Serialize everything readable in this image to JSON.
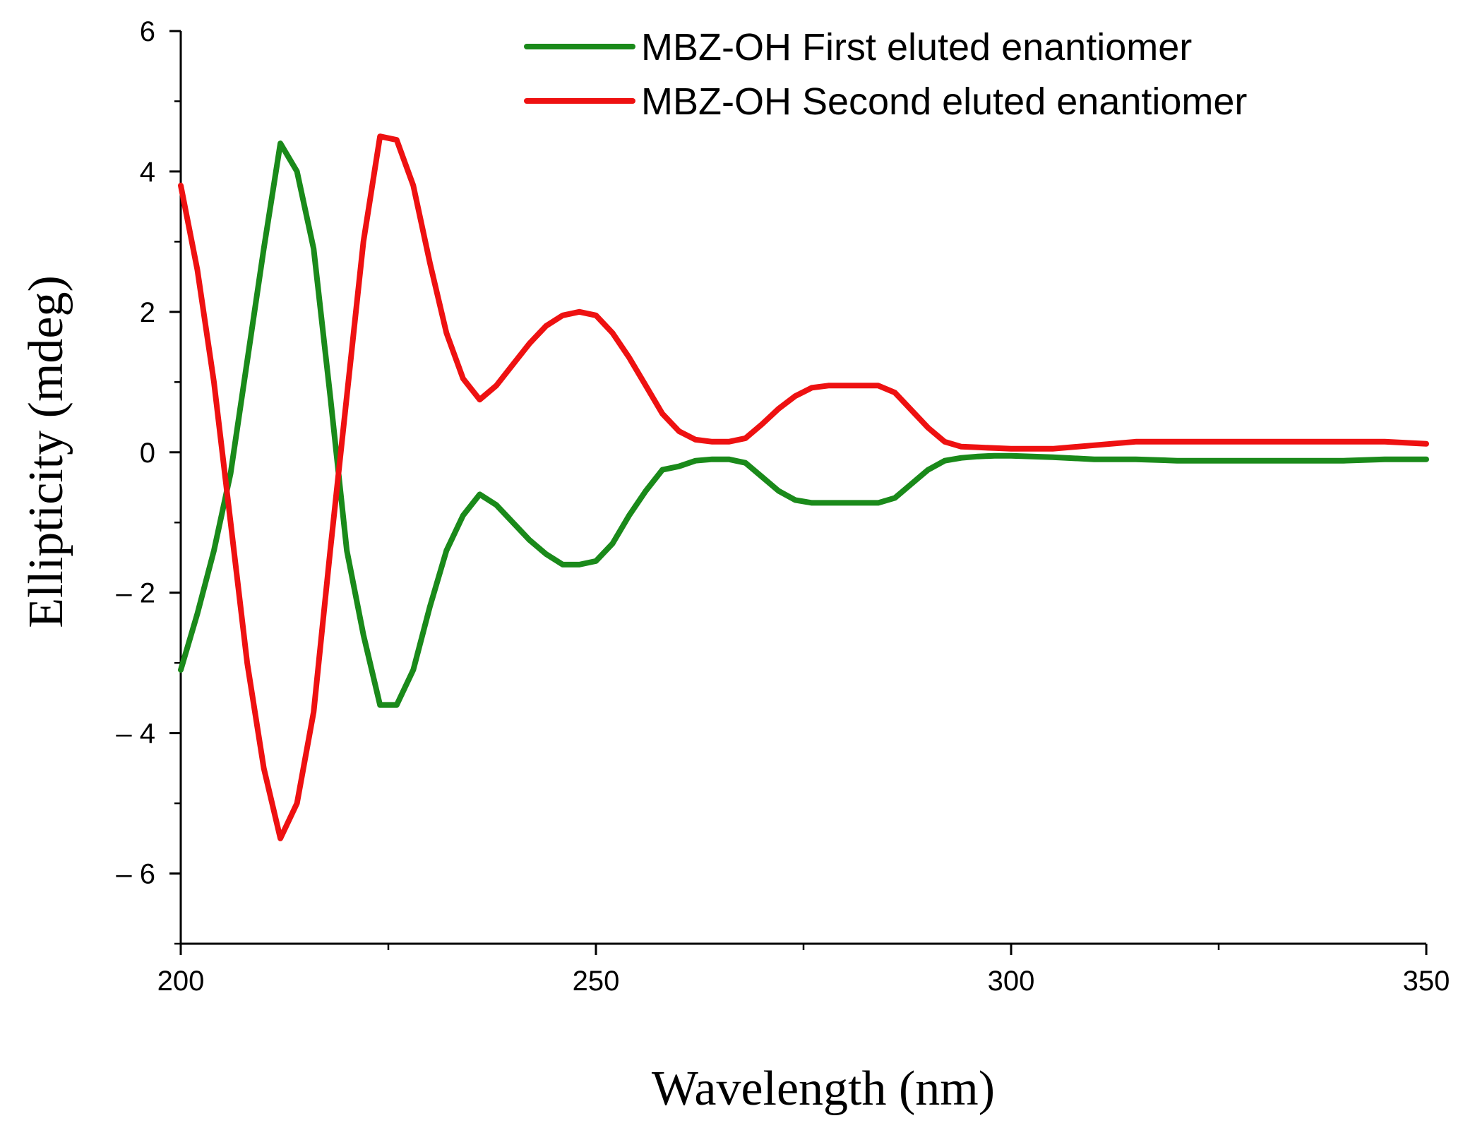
{
  "chart_data": {
    "type": "line",
    "title": "",
    "xlabel": "Wavelength (nm)",
    "ylabel": "Ellipticity (mdeg)",
    "xlim": [
      200,
      350
    ],
    "ylim": [
      -7,
      6
    ],
    "x_ticks": [
      200,
      250,
      300,
      350
    ],
    "x_tick_labels": [
      "200",
      "250",
      "300",
      "350"
    ],
    "y_ticks": [
      -6,
      -4,
      -2,
      0,
      2,
      4,
      6
    ],
    "y_tick_labels": [
      "– 6",
      "– 4",
      "– 2",
      "0",
      "2",
      "4",
      "6"
    ],
    "grid": false,
    "legend_position": "top-right",
    "series": [
      {
        "name": "MBZ-OH First eluted enantiomer",
        "color": "#1a8a1a",
        "x": [
          200,
          202,
          204,
          206,
          208,
          210,
          212,
          214,
          216,
          218,
          220,
          222,
          224,
          226,
          228,
          230,
          232,
          234,
          236,
          238,
          240,
          242,
          244,
          246,
          248,
          250,
          252,
          254,
          256,
          258,
          260,
          262,
          264,
          266,
          268,
          270,
          272,
          274,
          276,
          278,
          280,
          282,
          284,
          286,
          288,
          290,
          292,
          294,
          296,
          298,
          300,
          305,
          310,
          315,
          320,
          325,
          330,
          335,
          340,
          345,
          350
        ],
        "y": [
          -3.1,
          -2.3,
          -1.4,
          -0.3,
          1.3,
          2.9,
          4.4,
          4.0,
          2.9,
          0.8,
          -1.4,
          -2.6,
          -3.6,
          -3.6,
          -3.1,
          -2.2,
          -1.4,
          -0.9,
          -0.6,
          -0.75,
          -1.0,
          -1.25,
          -1.45,
          -1.6,
          -1.6,
          -1.55,
          -1.3,
          -0.9,
          -0.55,
          -0.25,
          -0.2,
          -0.12,
          -0.1,
          -0.1,
          -0.15,
          -0.35,
          -0.55,
          -0.68,
          -0.72,
          -0.72,
          -0.72,
          -0.72,
          -0.72,
          -0.65,
          -0.45,
          -0.25,
          -0.12,
          -0.08,
          -0.06,
          -0.05,
          -0.05,
          -0.07,
          -0.1,
          -0.1,
          -0.12,
          -0.12,
          -0.12,
          -0.12,
          -0.12,
          -0.1,
          -0.1
        ]
      },
      {
        "name": "MBZ-OH Second eluted enantiomer",
        "color": "#ee1111",
        "x": [
          200,
          202,
          204,
          206,
          208,
          210,
          212,
          214,
          216,
          218,
          220,
          222,
          224,
          226,
          228,
          230,
          232,
          234,
          236,
          238,
          240,
          242,
          244,
          246,
          248,
          250,
          252,
          254,
          256,
          258,
          260,
          262,
          264,
          266,
          268,
          270,
          272,
          274,
          276,
          278,
          280,
          282,
          284,
          286,
          288,
          290,
          292,
          294,
          296,
          298,
          300,
          305,
          310,
          315,
          320,
          325,
          330,
          335,
          340,
          345,
          350
        ],
        "y": [
          3.8,
          2.6,
          1.0,
          -1.0,
          -3.0,
          -4.5,
          -5.5,
          -5.0,
          -3.7,
          -1.4,
          0.8,
          3.0,
          4.5,
          4.45,
          3.8,
          2.7,
          1.7,
          1.05,
          0.75,
          0.95,
          1.25,
          1.55,
          1.8,
          1.95,
          2.0,
          1.95,
          1.7,
          1.35,
          0.95,
          0.55,
          0.3,
          0.18,
          0.15,
          0.15,
          0.2,
          0.4,
          0.62,
          0.8,
          0.92,
          0.95,
          0.95,
          0.95,
          0.95,
          0.85,
          0.6,
          0.35,
          0.15,
          0.08,
          0.07,
          0.06,
          0.05,
          0.05,
          0.1,
          0.15,
          0.15,
          0.15,
          0.15,
          0.15,
          0.15,
          0.15,
          0.12
        ]
      }
    ]
  }
}
